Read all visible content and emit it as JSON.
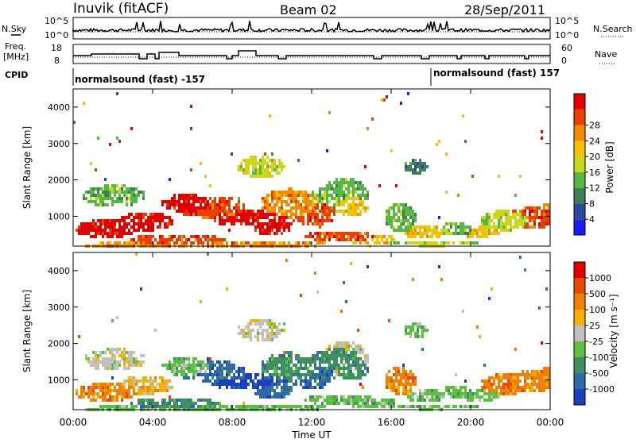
{
  "header": {
    "station": "Inuvik (fitACF)",
    "beam": "Beam 02",
    "date": "28/Sep/2011"
  },
  "strip_labels": {
    "nsky": "N.Sky",
    "nsky_top": "10^5",
    "nsky_bot": "10^0",
    "freq_l1": "Freq.",
    "freq_l2": "[MHz]",
    "freq_top": "18",
    "freq_bot": "8",
    "cpid": "CPID",
    "nsearch": "N.Search",
    "nsearch_top": "10^5",
    "nsearch_bot": "10^0",
    "nave": "Nave",
    "nave_top": "60",
    "nave_bot": "0",
    "cpid_a": "normalsound (fast) -157",
    "cpid_b": "normalsound (fast) 157"
  },
  "chart_data": [
    {
      "type": "heatmap",
      "name": "power",
      "ylabel": "Slant Range [km]",
      "yticks": [
        "1000",
        "2000",
        "3000",
        "4000"
      ],
      "ylim": [
        180,
        4500
      ],
      "colorbar": {
        "label": "Power [dB]",
        "ticks": [
          "4",
          "8",
          "12",
          "16",
          "20",
          "24",
          "28"
        ],
        "colors": [
          "#1a1aff",
          "#2b4aa0",
          "#3f7f55",
          "#55b845",
          "#c8d81e",
          "#f5c000",
          "#f08a00",
          "#e84000",
          "#e00000"
        ]
      },
      "band_rows": [
        {
          "range_km": 800,
          "level": 7
        },
        {
          "range_km": 1000,
          "level": 6
        },
        {
          "range_km": 1400,
          "level": 5
        },
        {
          "range_km": 1800,
          "level": 3
        }
      ]
    },
    {
      "type": "heatmap",
      "name": "velocity",
      "ylabel": "Slant Range [km]",
      "yticks": [
        "1000",
        "2000",
        "3000",
        "4000"
      ],
      "ylim": [
        180,
        4500
      ],
      "xlabel": "Time UT",
      "xticks": [
        "00:00",
        "04:00",
        "08:00",
        "12:00",
        "16:00",
        "20:00",
        "00:00"
      ],
      "colorbar": {
        "label": "Velocity [m s⁻¹]",
        "ticks": [
          "1000",
          "500",
          "100",
          "25",
          "-25",
          "-100",
          "-500",
          "-1000"
        ],
        "colors": [
          "#1a3fbf",
          "#2e6aa5",
          "#3f8f60",
          "#5cc040",
          "#c0c0c0",
          "#f5b000",
          "#f08000",
          "#e84a00",
          "#e00000"
        ]
      }
    }
  ]
}
